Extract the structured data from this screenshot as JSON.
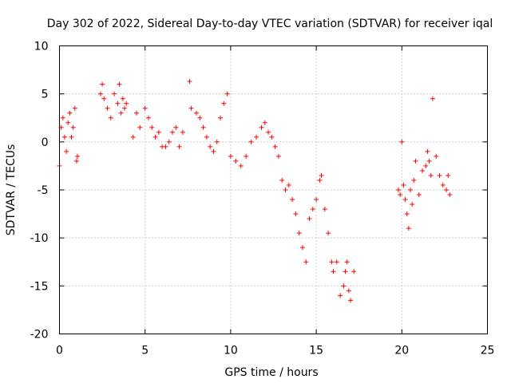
{
  "chart_data": {
    "type": "scatter",
    "title": "Day 302 of 2022, Sidereal Day-to-day VTEC variation (SDTVAR) for receiver iqal",
    "xlabel": "GPS time / hours",
    "ylabel": "SDTVAR / TECUs",
    "xlim": [
      0,
      25
    ],
    "ylim": [
      -20,
      10
    ],
    "xticks": [
      "0",
      "5",
      "10",
      "15",
      "20",
      "25"
    ],
    "yticks": [
      "10",
      "5",
      "0",
      "-5",
      "-10",
      "-15",
      "-20"
    ],
    "grid": true,
    "marker": "+",
    "color": "#ff0000",
    "series": [
      {
        "name": "SDTVAR",
        "x": [
          0.0,
          0.1,
          0.2,
          0.3,
          0.4,
          0.5,
          0.6,
          0.7,
          0.8,
          0.9,
          1.0,
          1.05,
          2.4,
          2.5,
          2.6,
          2.8,
          3.0,
          3.2,
          3.4,
          3.5,
          3.6,
          3.7,
          3.8,
          3.9,
          4.3,
          4.5,
          4.7,
          5.0,
          5.2,
          5.4,
          5.6,
          5.8,
          6.0,
          6.2,
          6.4,
          6.6,
          6.8,
          7.0,
          7.2,
          7.6,
          7.7,
          8.0,
          8.2,
          8.4,
          8.6,
          8.8,
          9.0,
          9.2,
          9.4,
          9.6,
          9.8,
          10.0,
          10.3,
          10.6,
          10.9,
          11.2,
          11.5,
          11.8,
          12.0,
          12.2,
          12.4,
          12.6,
          12.8,
          13.0,
          13.2,
          13.4,
          13.6,
          13.8,
          14.0,
          14.2,
          14.4,
          14.6,
          14.8,
          15.0,
          15.2,
          15.3,
          15.5,
          15.7,
          15.9,
          16.0,
          16.2,
          16.4,
          16.6,
          16.7,
          16.8,
          16.9,
          17.0,
          17.2,
          19.8,
          19.9,
          20.0,
          20.1,
          20.2,
          20.3,
          20.4,
          20.5,
          20.6,
          20.7,
          20.8,
          21.0,
          21.2,
          21.4,
          21.5,
          21.6,
          21.7,
          21.8,
          22.0,
          22.2,
          22.4,
          22.6,
          22.7,
          22.8
        ],
        "y": [
          -2.5,
          1.5,
          2.5,
          0.5,
          -1.0,
          2.0,
          3.0,
          0.5,
          1.5,
          3.5,
          -2.0,
          -1.5,
          5.0,
          6.0,
          4.5,
          3.5,
          2.5,
          5.0,
          4.0,
          6.0,
          3.0,
          4.5,
          3.5,
          4.0,
          0.5,
          3.0,
          1.5,
          3.5,
          2.5,
          1.5,
          0.5,
          1.0,
          -0.5,
          -0.5,
          0.0,
          1.0,
          1.5,
          -0.5,
          1.0,
          6.3,
          3.5,
          3.0,
          2.5,
          1.5,
          0.5,
          -0.5,
          -1.0,
          0.0,
          2.5,
          4.0,
          5.0,
          -1.5,
          -2.0,
          -2.5,
          -1.5,
          0.0,
          0.5,
          1.5,
          2.0,
          1.0,
          0.5,
          -0.5,
          -1.5,
          -4.0,
          -5.0,
          -4.5,
          -6.0,
          -7.5,
          -9.5,
          -11.0,
          -12.5,
          -8.0,
          -7.0,
          -6.0,
          -4.0,
          -3.5,
          -7.0,
          -9.5,
          -12.5,
          -13.5,
          -12.5,
          -16.0,
          -15.0,
          -13.5,
          -12.5,
          -15.5,
          -16.5,
          -13.5,
          -5.0,
          -5.5,
          0.0,
          -4.5,
          -6.0,
          -7.5,
          -9.0,
          -5.0,
          -6.5,
          -4.0,
          -2.0,
          -5.5,
          -3.0,
          -2.5,
          -1.0,
          -2.0,
          -3.5,
          4.5,
          -1.5,
          -3.5,
          -4.5,
          -5.0,
          -3.5,
          -5.5
        ]
      }
    ]
  }
}
